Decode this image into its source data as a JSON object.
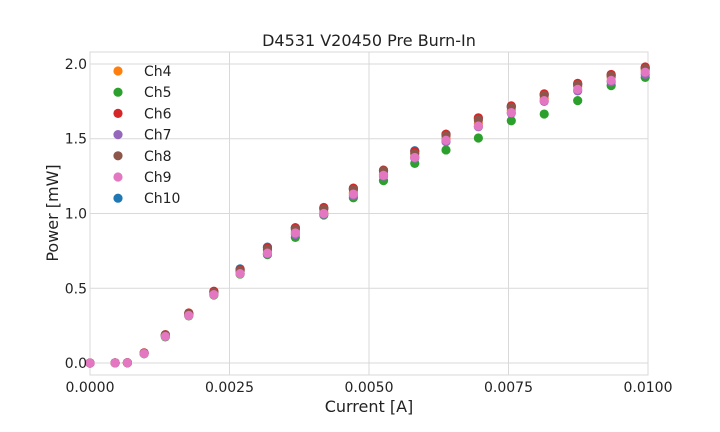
{
  "chart_data": {
    "type": "scatter",
    "title": "D4531 V20450 Pre Burn-In",
    "xlabel": "Current [A]",
    "ylabel": "Power [mW]",
    "xlim": [
      0,
      0.01
    ],
    "ylim": [
      -0.08,
      2.08
    ],
    "xticks": [
      0,
      0.0025,
      0.005,
      0.0075,
      0.01
    ],
    "xtick_labels": [
      "0.0000",
      "0.0025",
      "0.0050",
      "0.0075",
      "0.0100"
    ],
    "yticks": [
      0,
      0.5,
      1.0,
      1.5,
      2.0
    ],
    "ytick_labels": [
      "0.0",
      "0.5",
      "1.0",
      "1.5",
      "2.0"
    ],
    "grid": true,
    "legend_position": "top-left",
    "x": [
      0,
      0.00045,
      0.00067,
      0.00097,
      0.00135,
      0.00177,
      0.00222,
      0.00269,
      0.00318,
      0.00368,
      0.00419,
      0.00472,
      0.00526,
      0.00582,
      0.00638,
      0.00696,
      0.00755,
      0.00814,
      0.00874,
      0.00934,
      0.00995
    ],
    "series": [
      {
        "name": "Ch4",
        "color": "#ff7f0e",
        "values": [
          0,
          0.001,
          0.002,
          0.065,
          0.185,
          0.325,
          0.468,
          0.612,
          0.75,
          0.88,
          1.01,
          1.14,
          1.26,
          1.38,
          1.5,
          1.6,
          1.69,
          1.77,
          1.85,
          1.91,
          1.96
        ]
      },
      {
        "name": "Ch5",
        "color": "#2ca02c",
        "values": [
          0,
          0.001,
          0.002,
          0.062,
          0.175,
          0.315,
          0.455,
          0.595,
          0.725,
          0.84,
          0.99,
          1.105,
          1.22,
          1.335,
          1.425,
          1.505,
          1.62,
          1.665,
          1.755,
          1.855,
          1.91
        ]
      },
      {
        "name": "Ch6",
        "color": "#d62728",
        "values": [
          0,
          0.001,
          0.002,
          0.068,
          0.19,
          0.335,
          0.48,
          0.625,
          0.77,
          0.905,
          1.04,
          1.17,
          1.29,
          1.415,
          1.53,
          1.64,
          1.72,
          1.8,
          1.87,
          1.93,
          1.98
        ]
      },
      {
        "name": "Ch7",
        "color": "#9467bd",
        "values": [
          0,
          0.001,
          0.002,
          0.064,
          0.18,
          0.32,
          0.46,
          0.6,
          0.73,
          0.86,
          0.995,
          1.12,
          1.25,
          1.37,
          1.48,
          1.58,
          1.67,
          1.75,
          1.82,
          1.88,
          1.93
        ]
      },
      {
        "name": "Ch8",
        "color": "#8c564b",
        "values": [
          0,
          0.001,
          0.002,
          0.066,
          0.188,
          0.33,
          0.472,
          0.618,
          0.76,
          0.895,
          1.03,
          1.16,
          1.285,
          1.4,
          1.52,
          1.625,
          1.71,
          1.79,
          1.86,
          1.92,
          1.97
        ]
      },
      {
        "name": "Ch9",
        "color": "#e377c2",
        "values": [
          0,
          0.001,
          0.002,
          0.063,
          0.178,
          0.318,
          0.458,
          0.598,
          0.735,
          0.87,
          1.0,
          1.13,
          1.255,
          1.375,
          1.49,
          1.585,
          1.675,
          1.755,
          1.83,
          1.89,
          1.945
        ]
      },
      {
        "name": "Ch10",
        "color": "#1f77b4",
        "values": [
          0,
          0.001,
          0.002,
          0.067,
          0.186,
          0.332,
          0.478,
          0.63,
          0.775,
          0.905,
          1.035,
          1.165,
          1.285,
          1.42,
          1.53,
          1.635,
          1.715,
          1.795,
          1.865,
          1.925,
          1.975
        ]
      }
    ]
  }
}
